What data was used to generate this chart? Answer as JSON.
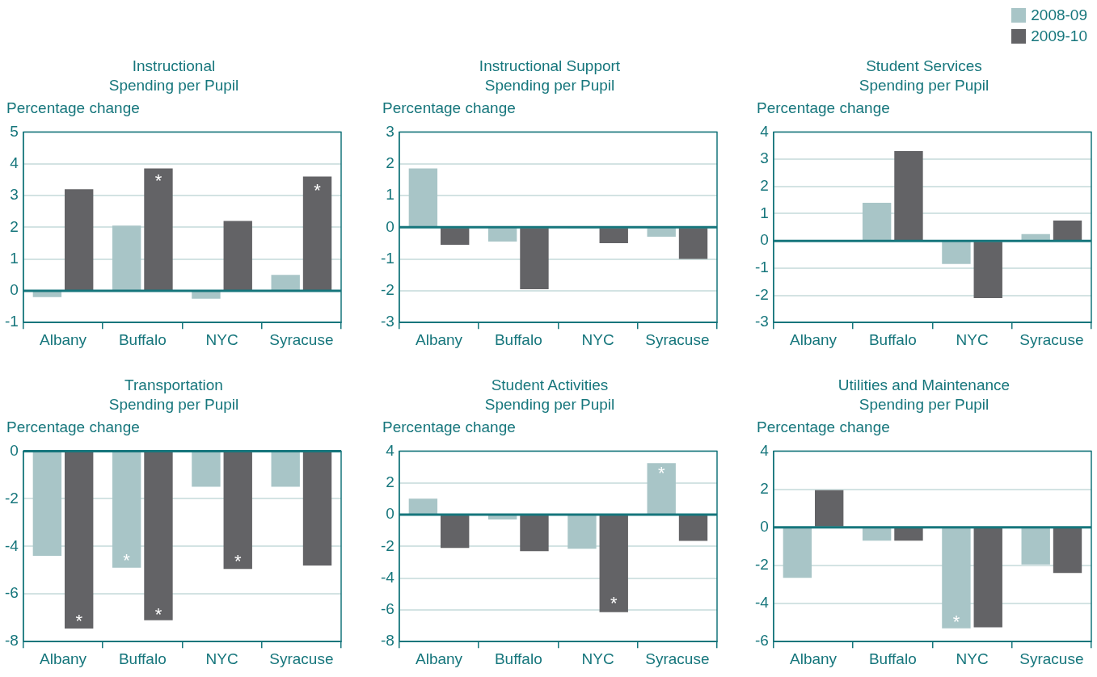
{
  "chart_data": [
    {
      "type": "bar",
      "title": "Instructional\nSpending per Pupil",
      "ylabel": "Percentage change",
      "categories": [
        "Albany",
        "Buffalo",
        "NYC",
        "Syracuse"
      ],
      "ylim": [
        -1,
        5
      ],
      "yticks": [
        -1,
        0,
        1,
        2,
        3,
        4,
        5
      ],
      "grid": "y",
      "legend": "top right",
      "ref_lines": [
        {
          "axis": "y",
          "value": 0,
          "color": "#16767c"
        }
      ],
      "series": [
        {
          "name": "2008-09",
          "color": "#a8c5c7",
          "values": [
            -0.2,
            2.05,
            -0.25,
            0.5
          ]
        },
        {
          "name": "2009-10",
          "color": "#636366",
          "values": [
            3.2,
            3.85,
            2.2,
            3.6
          ]
        }
      ],
      "annotations": [
        {
          "text": "*",
          "x": "Buffalo",
          "y": 3.55
        },
        {
          "text": "*",
          "x": "Syracuse",
          "y": 3.25
        }
      ]
    },
    {
      "type": "bar",
      "title": "Instructional Support\nSpending per Pupil",
      "ylabel": "Percentage change",
      "categories": [
        "Albany",
        "Buffalo",
        "NYC",
        "Syracuse"
      ],
      "ylim": [
        -3,
        3
      ],
      "yticks": [
        -3,
        -2,
        -1,
        0,
        1,
        2,
        3
      ],
      "grid": "y",
      "ref_lines": [
        {
          "axis": "y",
          "value": 0,
          "color": "#16767c"
        }
      ],
      "series": [
        {
          "name": "2008-09",
          "color": "#a8c5c7",
          "values": [
            1.85,
            -0.45,
            -0.03,
            -0.3
          ]
        },
        {
          "name": "2009-10",
          "color": "#636366",
          "values": [
            -0.55,
            -1.95,
            -0.5,
            -1.0
          ]
        }
      ]
    },
    {
      "type": "bar",
      "title": "Student Services\nSpending per Pupil",
      "ylabel": "Percentage change",
      "categories": [
        "Albany",
        "Buffalo",
        "NYC",
        "Syracuse"
      ],
      "ylim": [
        -3,
        4
      ],
      "yticks": [
        -3,
        -2,
        -1,
        0,
        1,
        2,
        3,
        4
      ],
      "grid": "y",
      "ref_lines": [
        {
          "axis": "y",
          "value": 0,
          "color": "#16767c"
        }
      ],
      "series": [
        {
          "name": "2008-09",
          "color": "#a8c5c7",
          "values": [
            0.02,
            1.4,
            -0.85,
            0.25
          ]
        },
        {
          "name": "2009-10",
          "color": "#636366",
          "values": [
            0.03,
            3.3,
            -2.1,
            0.75
          ]
        }
      ]
    },
    {
      "type": "bar",
      "title": "Transportation\nSpending per Pupil",
      "ylabel": "Percentage change",
      "categories": [
        "Albany",
        "Buffalo",
        "NYC",
        "Syracuse"
      ],
      "ylim": [
        -8,
        0
      ],
      "yticks": [
        -8,
        -6,
        -4,
        -2,
        0
      ],
      "grid": "y",
      "ref_lines": [
        {
          "axis": "y",
          "value": 0,
          "color": "#16767c"
        }
      ],
      "series": [
        {
          "name": "2008-09",
          "color": "#a8c5c7",
          "values": [
            -4.4,
            -4.9,
            -1.5,
            -1.5
          ]
        },
        {
          "name": "2009-10",
          "color": "#636366",
          "values": [
            -7.45,
            -7.1,
            -4.95,
            -4.8
          ]
        }
      ],
      "annotations": [
        {
          "text": "*",
          "x": "Albany",
          "y": -7.0
        },
        {
          "text": "*",
          "x": "Buffalo",
          "y": -4.45
        },
        {
          "text": "*",
          "x": "Buffalo",
          "y": -6.75
        },
        {
          "text": "*",
          "x": "NYC",
          "y": -4.5
        }
      ]
    },
    {
      "type": "bar",
      "title": "Student Activities\nSpending per Pupil",
      "ylabel": "Percentage change",
      "categories": [
        "Albany",
        "Buffalo",
        "NYC",
        "Syracuse"
      ],
      "ylim": [
        -8,
        4
      ],
      "yticks": [
        -8,
        -6,
        -4,
        -2,
        0,
        2,
        4
      ],
      "grid": "y",
      "ref_lines": [
        {
          "axis": "y",
          "value": 0,
          "color": "#16767c"
        }
      ],
      "series": [
        {
          "name": "2008-09",
          "color": "#a8c5c7",
          "values": [
            1.0,
            -0.3,
            -2.15,
            3.25
          ]
        },
        {
          "name": "2009-10",
          "color": "#636366",
          "values": [
            -2.1,
            -2.3,
            -6.15,
            -1.65
          ]
        }
      ],
      "annotations": [
        {
          "text": "*",
          "x": "NYC",
          "y": -5.4
        },
        {
          "text": "*",
          "x": "Syracuse",
          "y": 2.8
        }
      ]
    },
    {
      "type": "bar",
      "title": "Utilities and Maintenance\nSpending per Pupil",
      "ylabel": "Percentage change",
      "categories": [
        "Albany",
        "Buffalo",
        "NYC",
        "Syracuse"
      ],
      "ylim": [
        -6,
        4
      ],
      "yticks": [
        -6,
        -4,
        -2,
        0,
        2,
        4
      ],
      "grid": "y",
      "ref_lines": [
        {
          "axis": "y",
          "value": 0,
          "color": "#16767c"
        }
      ],
      "series": [
        {
          "name": "2008-09",
          "color": "#a8c5c7",
          "values": [
            -2.65,
            -0.7,
            -5.3,
            -1.95
          ]
        },
        {
          "name": "2009-10",
          "color": "#636366",
          "values": [
            1.95,
            -0.7,
            -5.25,
            -2.4
          ]
        }
      ],
      "annotations": [
        {
          "text": "*",
          "x": "NYC",
          "y": -4.8
        }
      ]
    }
  ]
}
